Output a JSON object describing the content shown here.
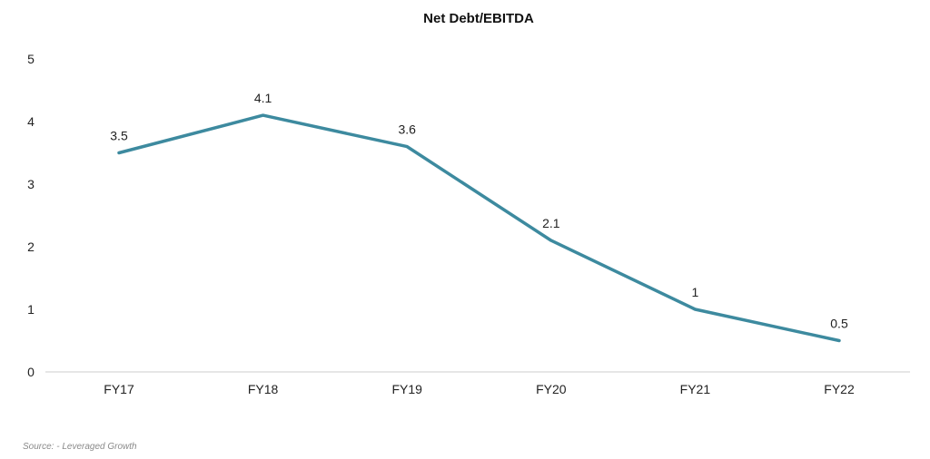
{
  "chart_data": {
    "type": "line",
    "title": "Net Debt/EBITDA",
    "categories": [
      "FY17",
      "FY18",
      "FY19",
      "FY20",
      "FY21",
      "FY22"
    ],
    "series": [
      {
        "values": [
          3.5,
          4.1,
          3.6,
          2.1,
          1,
          0.5
        ],
        "color": "#3d8a9f"
      }
    ],
    "data_labels": [
      "3.5",
      "4.1",
      "3.6",
      "2.1",
      "1",
      "0.5"
    ],
    "y_ticks": [
      "0",
      "1",
      "2",
      "3",
      "4",
      "5"
    ],
    "ylim": [
      0,
      5
    ],
    "grid": false,
    "legend": "none",
    "axis_color": "#cccccc"
  },
  "source": "Source: - Leveraged Growth"
}
